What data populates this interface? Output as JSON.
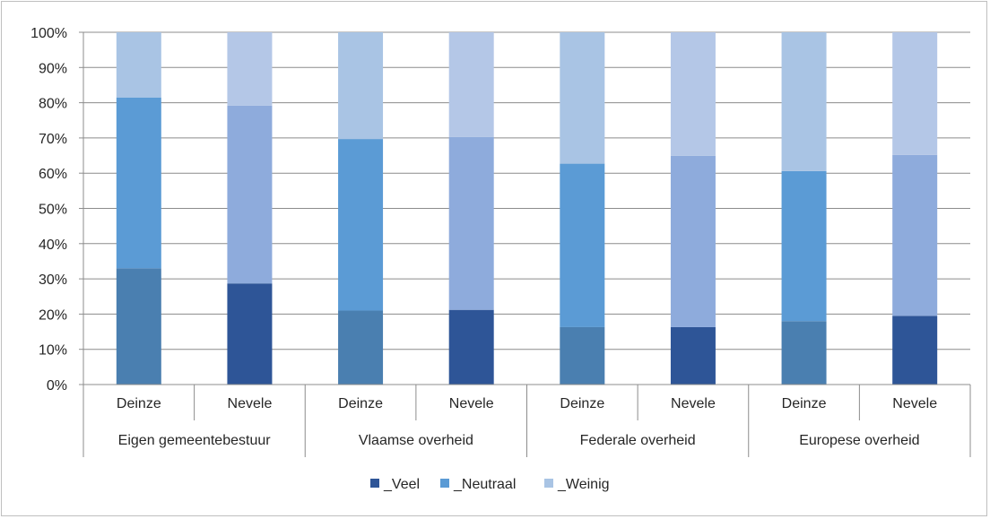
{
  "chart_data": {
    "type": "bar",
    "stacked": true,
    "percent_stacked": true,
    "groups": [
      {
        "label": "Eigen gemeentebestuur",
        "categories": [
          "Deinze",
          "Nevele"
        ]
      },
      {
        "label": "Vlaamse overheid",
        "categories": [
          "Deinze",
          "Nevele"
        ]
      },
      {
        "label": "Federale overheid",
        "categories": [
          "Deinze",
          "Nevele"
        ]
      },
      {
        "label": "Europese overheid",
        "categories": [
          "Deinze",
          "Nevele"
        ]
      }
    ],
    "categories": [
      "Deinze",
      "Nevele",
      "Deinze",
      "Nevele",
      "Deinze",
      "Nevele",
      "Deinze",
      "Nevele"
    ],
    "series": [
      {
        "name": "_Veel",
        "values": [
          33,
          28.7,
          21,
          21.2,
          16.3,
          16.3,
          18,
          19.5
        ]
      },
      {
        "name": "_Neutraal",
        "values": [
          48.5,
          50.5,
          48.7,
          49.1,
          46.4,
          48.6,
          42.6,
          45.7
        ]
      },
      {
        "name": "_Weinig",
        "values": [
          18.5,
          20.8,
          30.3,
          29.7,
          37.3,
          35.1,
          39.4,
          34.8
        ]
      }
    ],
    "colors": {
      "deinze": [
        "#4a7fb0",
        "#5b9bd5",
        "#a9c4e4"
      ],
      "nevele": [
        "#2e5597",
        "#8eabdc",
        "#b4c7e7"
      ],
      "legend": [
        "#2e5597",
        "#5b9bd5",
        "#a9c4e4"
      ]
    },
    "yticks": [
      "0%",
      "10%",
      "20%",
      "30%",
      "40%",
      "50%",
      "60%",
      "70%",
      "80%",
      "90%",
      "100%"
    ],
    "ylim": [
      0,
      100
    ],
    "grid": true,
    "legend_position": "bottom"
  }
}
